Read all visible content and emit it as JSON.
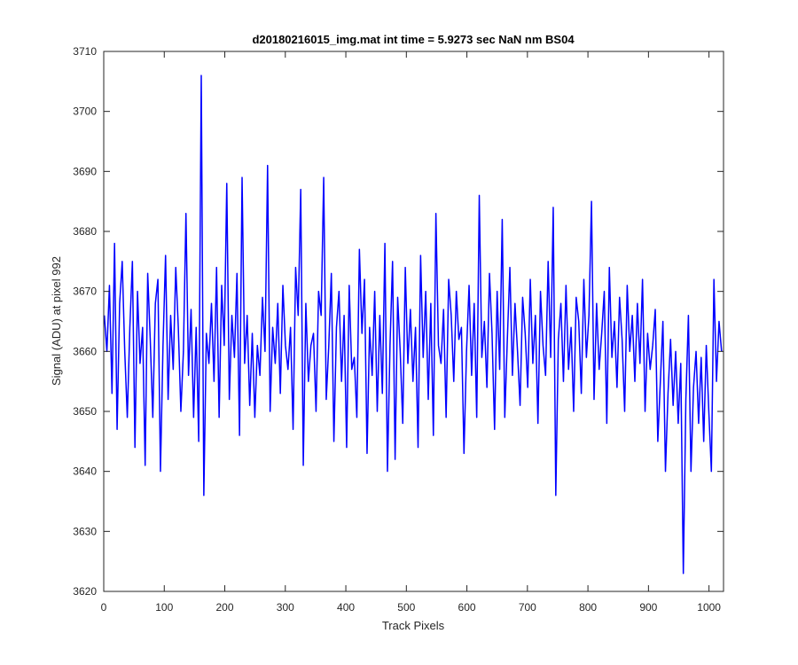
{
  "chart_data": {
    "type": "line",
    "title": "d20180216015_img.mat int time = 5.9273 sec  NaN nm BS04",
    "xlabel": "Track Pixels",
    "ylabel": "Signal (ADU) at pixel 992",
    "xlim": [
      0,
      1024
    ],
    "ylim": [
      3620,
      3710
    ],
    "xticks": [
      0,
      100,
      200,
      300,
      400,
      500,
      600,
      700,
      800,
      900,
      1000
    ],
    "yticks": [
      3620,
      3630,
      3640,
      3650,
      3660,
      3670,
      3680,
      3690,
      3700,
      3710
    ],
    "grid": false,
    "series": [
      {
        "name": "",
        "color": "#0000ff",
        "x_start": 1,
        "x_step": 1,
        "values": [
          3666,
          3660,
          3671,
          3653,
          3678,
          3647,
          3668,
          3675,
          3660,
          3649,
          3664,
          3675,
          3644,
          3670,
          3658,
          3664,
          3641,
          3673,
          3662,
          3649,
          3668,
          3672,
          3640,
          3661,
          3676,
          3652,
          3666,
          3657,
          3674,
          3664,
          3650,
          3660,
          3683,
          3656,
          3667,
          3649,
          3664,
          3645,
          3706,
          3636,
          3663,
          3658,
          3668,
          3655,
          3674,
          3649,
          3671,
          3661,
          3688,
          3652,
          3666,
          3659,
          3673,
          3646,
          3689,
          3658,
          3666,
          3651,
          3663,
          3649,
          3661,
          3656,
          3669,
          3660,
          3691,
          3650,
          3664,
          3658,
          3668,
          3653,
          3671,
          3661,
          3657,
          3664,
          3647,
          3674,
          3666,
          3687,
          3641,
          3668,
          3655,
          3661,
          3663,
          3650,
          3670,
          3666,
          3689,
          3652,
          3661,
          3673,
          3645,
          3664,
          3670,
          3655,
          3666,
          3644,
          3671,
          3657,
          3659,
          3649,
          3677,
          3663,
          3672,
          3643,
          3664,
          3656,
          3670,
          3650,
          3666,
          3653,
          3678,
          3640,
          3661,
          3675,
          3642,
          3669,
          3660,
          3648,
          3674,
          3658,
          3667,
          3655,
          3664,
          3644,
          3676,
          3659,
          3670,
          3652,
          3668,
          3646,
          3683,
          3661,
          3658,
          3667,
          3649,
          3672,
          3666,
          3655,
          3670,
          3662,
          3664,
          3643,
          3660,
          3671,
          3656,
          3668,
          3649,
          3686,
          3659,
          3665,
          3654,
          3673,
          3663,
          3647,
          3670,
          3657,
          3682,
          3649,
          3662,
          3674,
          3656,
          3668,
          3660,
          3651,
          3669,
          3663,
          3654,
          3672,
          3658,
          3666,
          3648,
          3670,
          3661,
          3656,
          3675,
          3659,
          3684,
          3636,
          3662,
          3668,
          3655,
          3671,
          3657,
          3664,
          3650,
          3669,
          3665,
          3653,
          3672,
          3659,
          3666,
          3685,
          3652,
          3668,
          3657,
          3663,
          3670,
          3648,
          3674,
          3659,
          3665,
          3654,
          3669,
          3662,
          3650,
          3671,
          3660,
          3666,
          3655,
          3668,
          3658,
          3672,
          3650,
          3663,
          3657,
          3661,
          3667,
          3645,
          3655,
          3665,
          3640,
          3653,
          3662,
          3651,
          3660,
          3648,
          3658,
          3623,
          3652,
          3666,
          3640,
          3654,
          3660,
          3648,
          3659,
          3645,
          3661,
          3650,
          3640,
          3672,
          3655,
          3665,
          3660
        ]
      }
    ]
  }
}
